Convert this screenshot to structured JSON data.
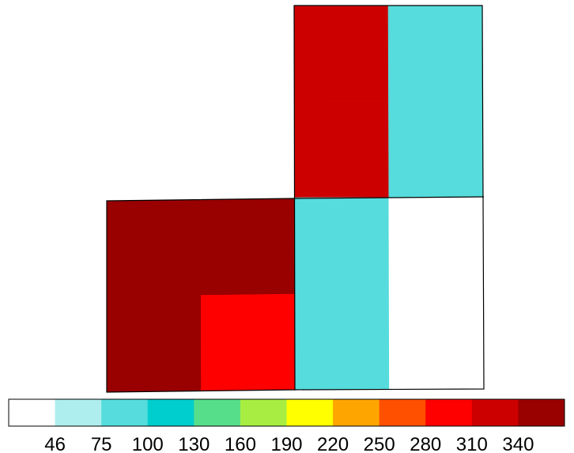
{
  "chart_data": {
    "type": "heatmap",
    "title": "",
    "xlabel": "",
    "ylabel": "",
    "grid": false,
    "legend": "colorbar-bottom",
    "colorbar": {
      "colors": [
        "#ffffff",
        "#aeeeee",
        "#56dcdc",
        "#00cdcd",
        "#57de8a",
        "#a8ee42",
        "#ffff00",
        "#ffa500",
        "#ff5000",
        "#ff0000",
        "#cd0000",
        "#990000"
      ],
      "tick_labels": [
        "46",
        "75",
        "100",
        "130",
        "160",
        "190",
        "220",
        "250",
        "280",
        "310",
        "340"
      ],
      "tick_values": [
        46,
        75,
        100,
        130,
        160,
        190,
        220,
        250,
        280,
        310,
        340
      ]
    },
    "blocks": [
      {
        "name": "lower-left-block",
        "rows": 2,
        "cols": 2,
        "cells": [
          [
            "#990000",
            "#990000"
          ],
          [
            "#990000",
            "#ff0000"
          ]
        ]
      },
      {
        "name": "upper-right-block",
        "rows": 4,
        "cols": 2,
        "cells": [
          [
            "#cd0000",
            "#56dcdc"
          ],
          [
            "#cd0000",
            "#56dcdc"
          ],
          [
            "#56dcdc",
            "#ffffff"
          ],
          [
            "#56dcdc",
            "#ffffff"
          ]
        ]
      }
    ]
  }
}
